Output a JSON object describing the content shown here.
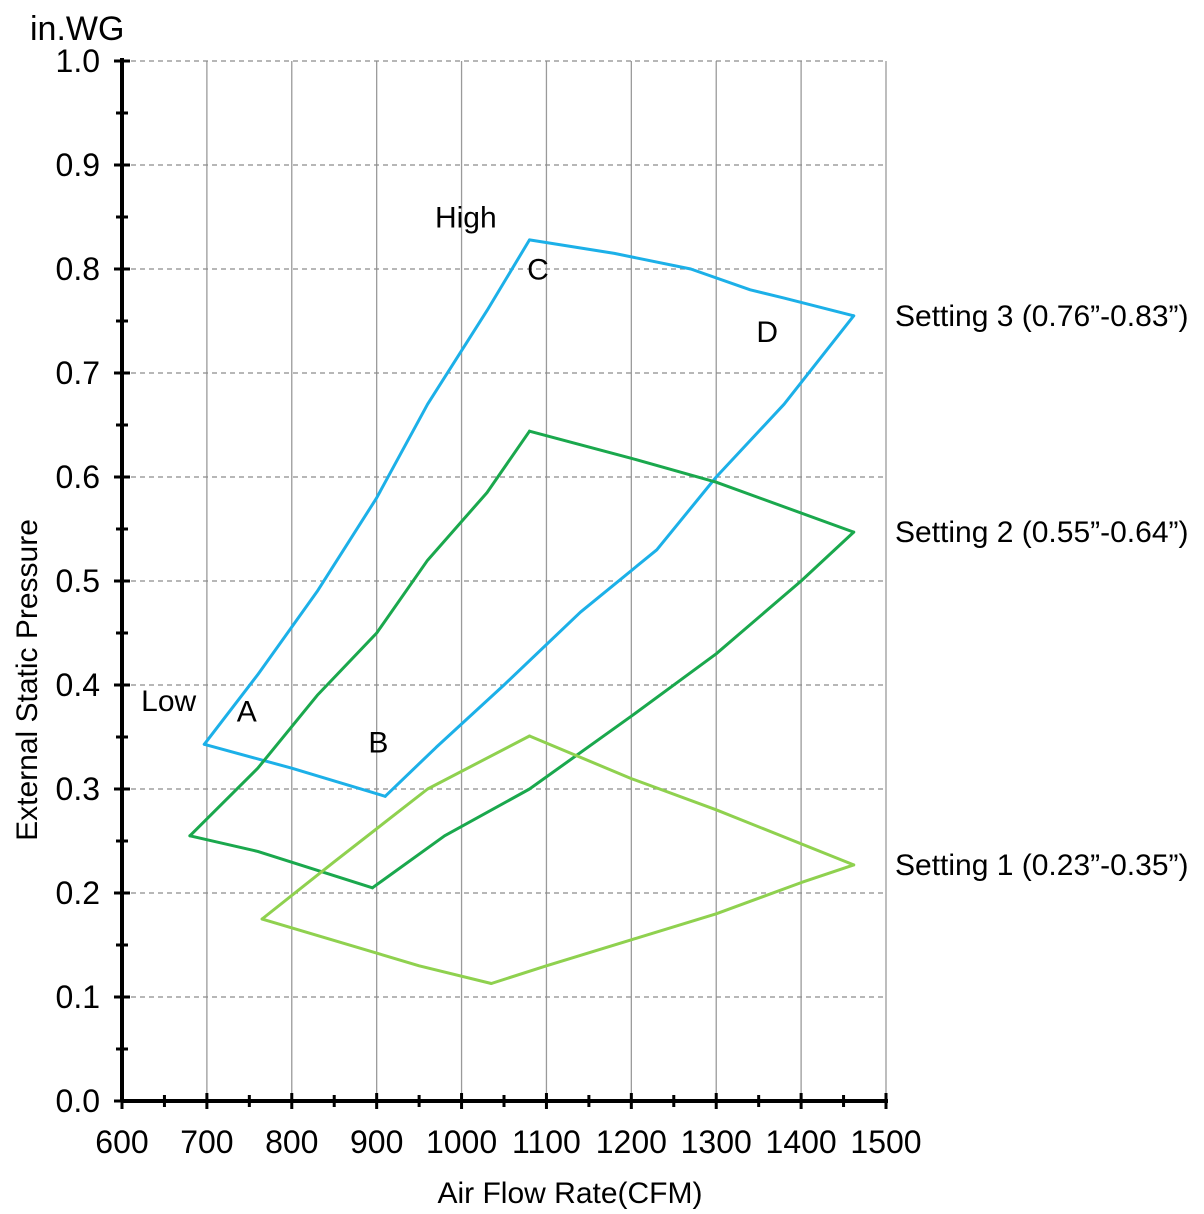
{
  "chart_data": {
    "type": "line",
    "title": "",
    "xlabel": "Air Flow Rate(CFM)",
    "ylabel": "External Static Pressure",
    "y_unit": "in.WG",
    "xlim": [
      600,
      1500
    ],
    "ylim": [
      0.0,
      1.0
    ],
    "x_ticks": [
      "600",
      "700",
      "800",
      "900",
      "1000",
      "1100",
      "1200",
      "1300",
      "1400",
      "1500"
    ],
    "y_ticks": [
      "0.0",
      "0.1",
      "0.2",
      "0.3",
      "0.4",
      "0.5",
      "0.6",
      "0.7",
      "0.8",
      "0.9",
      "1.0"
    ],
    "grid": true,
    "series": [
      {
        "name": "Setting 3 (0.76”-0.83”)",
        "color": "#1cb0e8",
        "curves": [
          [
            [
              697,
              0.343
            ],
            [
              760,
              0.41
            ],
            [
              830,
              0.49
            ],
            [
              900,
              0.58
            ],
            [
              960,
              0.67
            ],
            [
              1030,
              0.76
            ],
            [
              1080,
              0.828
            ]
          ],
          [
            [
              1080,
              0.828
            ],
            [
              1180,
              0.815
            ],
            [
              1270,
              0.8
            ],
            [
              1340,
              0.78
            ],
            [
              1380,
              0.772
            ],
            [
              1462,
              0.755
            ]
          ],
          [
            [
              910,
              0.293
            ],
            [
              970,
              0.34
            ],
            [
              1050,
              0.4
            ],
            [
              1140,
              0.47
            ],
            [
              1230,
              0.53
            ],
            [
              1300,
              0.6
            ],
            [
              1380,
              0.67
            ],
            [
              1462,
              0.755
            ]
          ],
          [
            [
              697,
              0.343
            ],
            [
              800,
              0.32
            ],
            [
              910,
              0.293
            ]
          ]
        ]
      },
      {
        "name": "Setting 2 (0.55”-0.64”)",
        "color": "#1aa84d",
        "curves": [
          [
            [
              680,
              0.255
            ],
            [
              760,
              0.32
            ],
            [
              830,
              0.39
            ],
            [
              900,
              0.45
            ],
            [
              960,
              0.52
            ],
            [
              1030,
              0.585
            ],
            [
              1080,
              0.644
            ]
          ],
          [
            [
              1080,
              0.644
            ],
            [
              1200,
              0.618
            ],
            [
              1300,
              0.595
            ],
            [
              1462,
              0.547
            ]
          ],
          [
            [
              895,
              0.205
            ],
            [
              980,
              0.255
            ],
            [
              1080,
              0.3
            ],
            [
              1200,
              0.37
            ],
            [
              1300,
              0.43
            ],
            [
              1400,
              0.5
            ],
            [
              1462,
              0.547
            ]
          ],
          [
            [
              680,
              0.255
            ],
            [
              760,
              0.24
            ],
            [
              895,
              0.205
            ]
          ]
        ]
      },
      {
        "name": "Setting 1 (0.23”-0.35”)",
        "color": "#8fd14f",
        "curves": [
          [
            [
              765,
              0.175
            ],
            [
              850,
              0.23
            ],
            [
              960,
              0.3
            ],
            [
              1080,
              0.351
            ]
          ],
          [
            [
              1080,
              0.351
            ],
            [
              1200,
              0.31
            ],
            [
              1300,
              0.28
            ],
            [
              1462,
              0.227
            ]
          ],
          [
            [
              1035,
              0.113
            ],
            [
              1100,
              0.13
            ],
            [
              1200,
              0.155
            ],
            [
              1300,
              0.18
            ],
            [
              1400,
              0.21
            ],
            [
              1462,
              0.227
            ]
          ],
          [
            [
              765,
              0.175
            ],
            [
              950,
              0.13
            ],
            [
              1035,
              0.113
            ]
          ]
        ]
      }
    ],
    "series_labels": [
      "Setting 3 (0.76”-0.83”)",
      "Setting 2 (0.55”-0.64”)",
      "Setting 1 (0.23”-0.35”)"
    ],
    "series_label_y": [
      0.755,
      0.547,
      0.227
    ],
    "annotations": [
      {
        "text": "High",
        "x": 1005,
        "y": 0.84
      },
      {
        "text": "Low",
        "x": 655,
        "y": 0.375
      },
      {
        "text": "A",
        "x": 747,
        "y": 0.365
      },
      {
        "text": "B",
        "x": 902,
        "y": 0.335
      },
      {
        "text": "C",
        "x": 1090,
        "y": 0.79
      },
      {
        "text": "D",
        "x": 1360,
        "y": 0.73
      }
    ]
  }
}
